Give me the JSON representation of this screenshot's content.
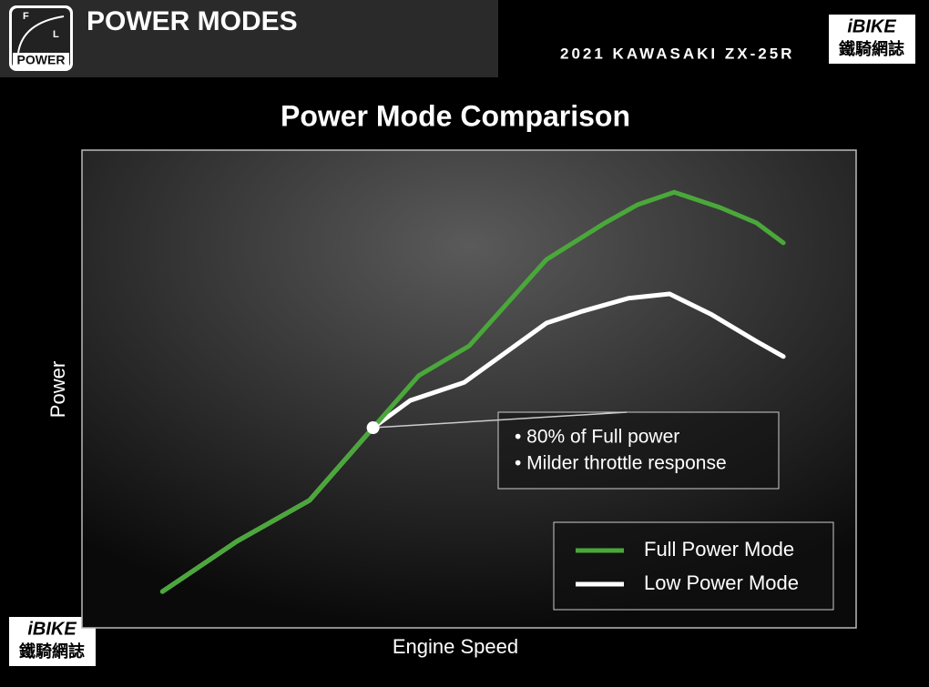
{
  "header": {
    "icon_labels": [
      "F",
      "L",
      "POWER"
    ],
    "title": "POWER MODES",
    "subtitle": "2021 KAWASAKI ZX-25R",
    "logo": "iBIKE",
    "logo_sub": "鐵騎網誌"
  },
  "chart_data": {
    "type": "line",
    "title": "Power Mode Comparison",
    "xlabel": "Engine Speed",
    "ylabel": "Power",
    "xlim": [
      0,
      100
    ],
    "ylim": [
      0,
      100
    ],
    "legend": "lower right",
    "series": [
      {
        "name": "Full Power Mode",
        "color": "#4aa83a",
        "x": [
          10.4,
          20,
          29.4,
          37.6,
          43.5,
          50,
          60,
          67.6,
          71.8,
          76.5,
          82.4,
          87.1,
          90.6
        ],
        "values": [
          7.6,
          18.1,
          26.7,
          41.9,
          52.8,
          59,
          77.1,
          84.8,
          88.6,
          91.2,
          88,
          84.8,
          80.6
        ]
      },
      {
        "name": "Low Power Mode",
        "color": "#ffffff",
        "x": [
          10.4,
          20,
          29.4,
          37.6,
          42.4,
          49.4,
          60,
          64.7,
          70.6,
          75.9,
          81.2,
          87.1,
          90.6
        ],
        "values": [
          7.6,
          18.1,
          26.7,
          41.9,
          47.6,
          51.4,
          63.8,
          66.3,
          69,
          69.9,
          65.7,
          60,
          56.8
        ]
      }
    ],
    "annotation": {
      "lines": [
        "• 80% of Full power",
        "• Milder throttle response"
      ]
    }
  }
}
